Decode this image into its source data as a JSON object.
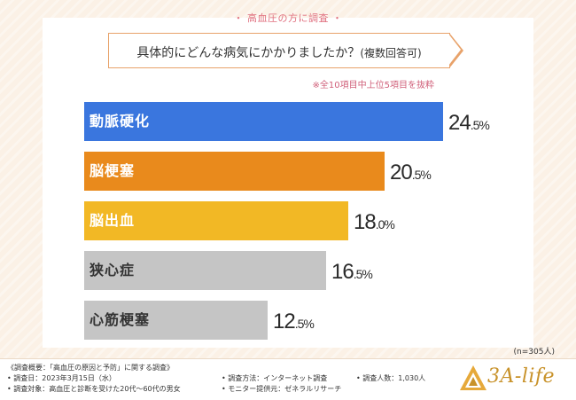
{
  "survey_title": "・ 高血圧の方に調査 ・",
  "question": {
    "main": "具体的にどんな病気にかかりましたか？",
    "sub": "(複数回答可)"
  },
  "note": "※全10項目中上位5項目を抜粋",
  "sample_size": "(n=305人)",
  "chart_data": {
    "type": "bar",
    "orientation": "horizontal",
    "title": "具体的にどんな病気にかかりましたか？(複数回答可)",
    "categories": [
      "動脈硬化",
      "脳梗塞",
      "脳出血",
      "狭心症",
      "心筋梗塞"
    ],
    "values": [
      24.5,
      20.5,
      18.0,
      16.5,
      12.5
    ],
    "value_labels": [
      {
        "int": "24",
        "dec": ".5%"
      },
      {
        "int": "20",
        "dec": ".5%"
      },
      {
        "int": "18",
        "dec": ".0%"
      },
      {
        "int": "16",
        "dec": ".5%"
      },
      {
        "int": "12",
        "dec": ".5%"
      }
    ],
    "unit": "%",
    "xlim": [
      0,
      30
    ],
    "colors": [
      "#3a76de",
      "#e98a1c",
      "#f2b825",
      "#c5c5c5",
      "#c5c5c5"
    ]
  },
  "footer": {
    "overview": "《調査概要：「高血圧の原因と予防」に関する調査》",
    "date": "• 調査日：2023年3月15日（水）",
    "target": "• 調査対象：高血圧と診断を受けた20代〜60代の男女",
    "method": "• 調査方法：インターネット調査",
    "provider": "• モニター提供元：ゼネラルリサーチ",
    "count": "• 調査人数：1,030人"
  },
  "brand": {
    "name": "3A-life",
    "color": "#c8922a"
  }
}
